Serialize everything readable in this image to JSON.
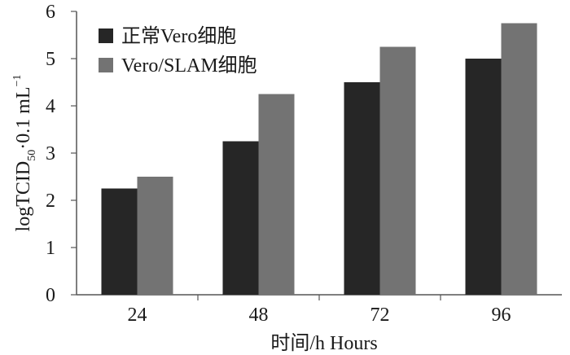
{
  "chart_data": {
    "type": "bar",
    "categories": [
      "24",
      "48",
      "72",
      "96"
    ],
    "series": [
      {
        "name": "正常Vero细胞",
        "values": [
          2.25,
          3.25,
          4.5,
          5.0
        ]
      },
      {
        "name": "Vero/SLAM细胞",
        "values": [
          2.5,
          4.25,
          5.25,
          5.75
        ]
      }
    ],
    "xlabel": "时间/h Hours",
    "ylabel": {
      "main": "logTCID",
      "subscript": "50",
      "rest": "·0.1 mL",
      "superscript": "−1"
    },
    "ylim": [
      0,
      6
    ],
    "yticks": [
      "0",
      "1",
      "2",
      "3",
      "4",
      "5",
      "6"
    ],
    "grid": false,
    "legend_position": "top-left",
    "colors": [
      "#262626",
      "#737373"
    ]
  }
}
